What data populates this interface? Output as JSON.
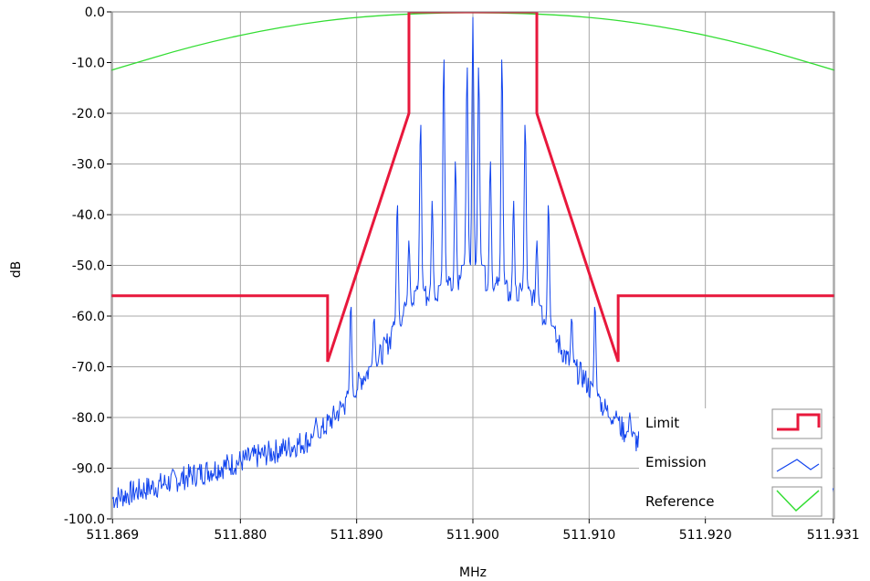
{
  "chart_data": {
    "type": "line",
    "xlabel": "MHz",
    "ylabel": "dB",
    "xlim": [
      511.8689,
      511.9311
    ],
    "ylim": [
      -100,
      0
    ],
    "grid": true,
    "x_ticks": [
      {
        "value": 511.869,
        "label": "511.869"
      },
      {
        "value": 511.88,
        "label": "511.880"
      },
      {
        "value": 511.89,
        "label": "511.890"
      },
      {
        "value": 511.9,
        "label": "511.900"
      },
      {
        "value": 511.91,
        "label": "511.910"
      },
      {
        "value": 511.92,
        "label": "511.920"
      },
      {
        "value": 511.931,
        "label": "511.931"
      }
    ],
    "y_ticks": [
      {
        "value": 0,
        "label": "0.0"
      },
      {
        "value": -10,
        "label": "-10.0"
      },
      {
        "value": -20,
        "label": "-20.0"
      },
      {
        "value": -30,
        "label": "-30.0"
      },
      {
        "value": -40,
        "label": "-40.0"
      },
      {
        "value": -50,
        "label": "-50.0"
      },
      {
        "value": -60,
        "label": "-60.0"
      },
      {
        "value": -70,
        "label": "-70.0"
      },
      {
        "value": -80,
        "label": "-80.0"
      },
      {
        "value": -90,
        "label": "-90.0"
      },
      {
        "value": -100,
        "label": "-100.0"
      }
    ],
    "legend_position": "bottom-right",
    "series": [
      {
        "name": "Limit",
        "color": "#e8183c",
        "x": [
          511.8689,
          511.8875,
          511.8875,
          511.8945,
          511.8945,
          511.9055,
          511.9055,
          511.9125,
          511.9125,
          511.9311
        ],
        "y": [
          -56,
          -56,
          -69,
          -20,
          0,
          0,
          -20,
          -69,
          -56,
          -56
        ]
      },
      {
        "name": "Emission",
        "color": "#1144ee",
        "x": [
          511.869,
          511.872,
          511.875,
          511.878,
          511.881,
          511.884,
          511.8865,
          511.888,
          511.8895,
          511.8905,
          511.8915,
          511.8925,
          511.8935,
          511.8945,
          511.8955,
          511.8965,
          511.8975,
          511.8985,
          511.8995,
          511.9,
          511.9005,
          511.9015,
          511.9025,
          511.9035,
          511.9045,
          511.9055,
          511.9065,
          511.9075,
          511.9085,
          511.9095,
          511.9105,
          511.912,
          511.9135,
          511.916,
          511.919,
          511.922,
          511.925,
          511.928,
          511.931
        ],
        "y": [
          -96,
          -94,
          -92,
          -90,
          -88,
          -86,
          -84,
          -80,
          -76,
          -72,
          -70,
          -66,
          -62,
          -58,
          -55,
          -57,
          -54,
          -55,
          -50,
          -52,
          -50,
          -55,
          -54,
          -57,
          -55,
          -58,
          -62,
          -66,
          -70,
          -72,
          -76,
          -80,
          -84,
          -87,
          -90,
          -92,
          -93,
          -94,
          -96
        ],
        "peaks": [
          {
            "x": 511.8865,
            "y": -80
          },
          {
            "x": 511.8895,
            "y": -57
          },
          {
            "x": 511.8915,
            "y": -60
          },
          {
            "x": 511.8935,
            "y": -37
          },
          {
            "x": 511.8945,
            "y": -45
          },
          {
            "x": 511.8955,
            "y": -21
          },
          {
            "x": 511.8965,
            "y": -37
          },
          {
            "x": 511.8975,
            "y": -8
          },
          {
            "x": 511.8985,
            "y": -29
          },
          {
            "x": 511.8995,
            "y": -10
          },
          {
            "x": 511.9,
            "y": -1
          },
          {
            "x": 511.9005,
            "y": -10
          },
          {
            "x": 511.9015,
            "y": -29
          },
          {
            "x": 511.9025,
            "y": -8
          },
          {
            "x": 511.9035,
            "y": -37
          },
          {
            "x": 511.9045,
            "y": -21
          },
          {
            "x": 511.9055,
            "y": -45
          },
          {
            "x": 511.9065,
            "y": -37
          },
          {
            "x": 511.9085,
            "y": -60
          },
          {
            "x": 511.9105,
            "y": -57
          },
          {
            "x": 511.9135,
            "y": -79
          },
          {
            "x": 511.912,
            "y": -83
          }
        ]
      },
      {
        "name": "Reference",
        "color": "#33dd33",
        "x": [
          511.8689,
          511.8762,
          511.8835,
          511.8909,
          511.9,
          511.9091,
          511.9165,
          511.9238,
          511.9311
        ],
        "y": [
          -11.5,
          -6.5,
          -2.9,
          -0.7,
          0,
          -0.7,
          -2.9,
          -6.5,
          -11.5
        ]
      }
    ]
  }
}
